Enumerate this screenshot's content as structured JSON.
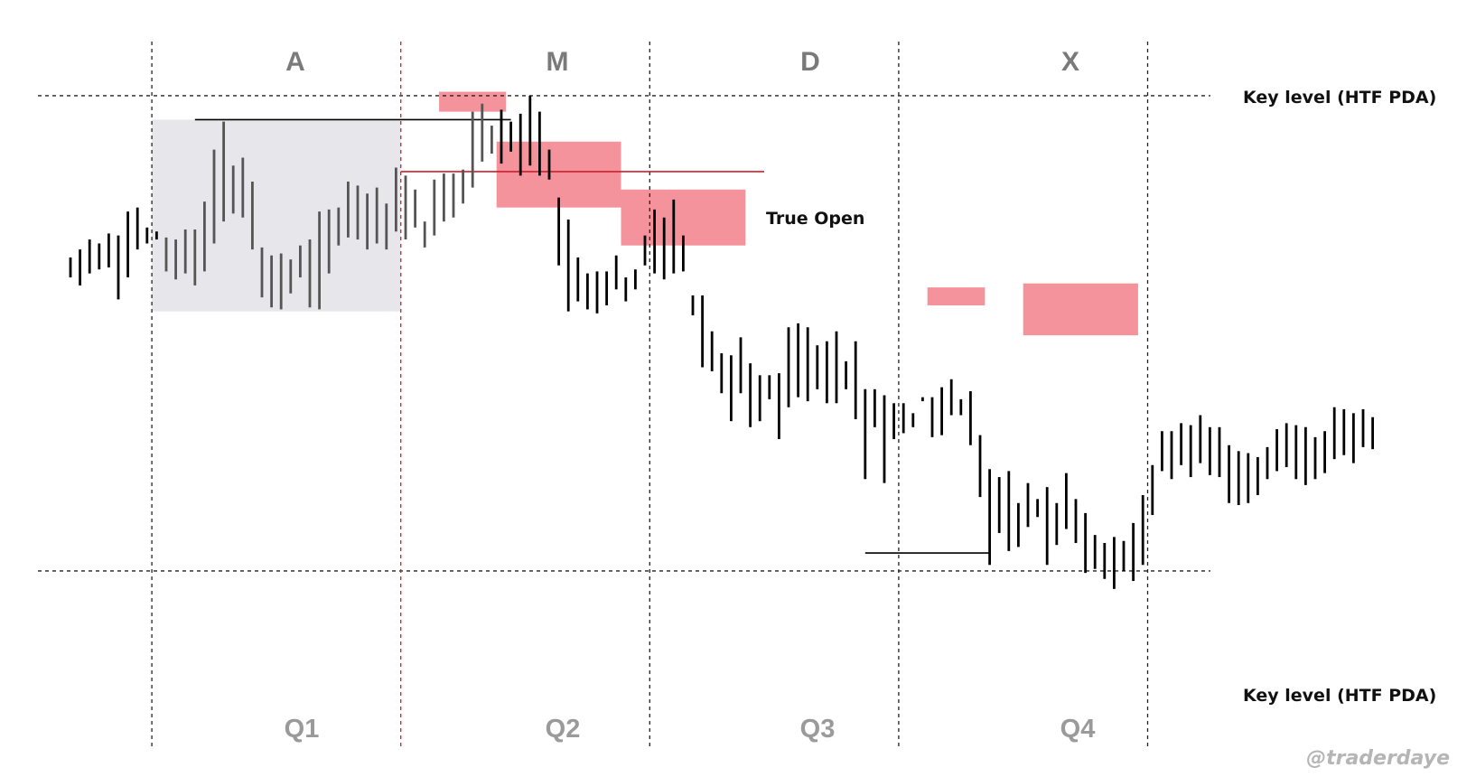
{
  "chart_data": {
    "type": "bar",
    "style": "ohlc-price-bars",
    "grid": false,
    "phases": [
      "A",
      "M",
      "D",
      "X"
    ],
    "quarters": [
      "Q1",
      "Q2",
      "Q3",
      "Q4"
    ],
    "key_level_top": "Key level (HTF PDA)",
    "key_level_bottom": "Key level (HTF PDA)",
    "true_open_label": "True Open",
    "watermark": "@traderdaye",
    "colors": {
      "accumulation_bars": "#555555",
      "price_bars": "#000000",
      "zone_fill": "#f4939c",
      "range_fill": "#e6e6eb",
      "true_open_line": "#d0202c",
      "guide_lines": "#222222",
      "phase_text": "#7a7a7a",
      "quarter_text": "#9a9a9a"
    },
    "bars": [
      [
        0,
        -0.5,
        0.5
      ],
      [
        1,
        -0.9,
        0.9
      ],
      [
        2,
        -0.3,
        1.4
      ],
      [
        3,
        -0.1,
        1.2
      ],
      [
        4,
        0.0,
        1.7
      ],
      [
        5,
        -1.6,
        1.6
      ],
      [
        6,
        -0.5,
        2.8
      ],
      [
        7,
        0.9,
        3.0
      ],
      [
        8,
        1.2,
        2.0
      ],
      [
        9,
        1.4,
        1.8
      ],
      [
        10,
        -0.2,
        1.5
      ],
      [
        11,
        -0.6,
        1.4
      ],
      [
        12,
        -0.3,
        1.9
      ],
      [
        13,
        -0.9,
        1.9
      ],
      [
        14,
        -0.2,
        3.3
      ],
      [
        15,
        1.2,
        5.9
      ],
      [
        16,
        2.3,
        7.3
      ],
      [
        17,
        2.7,
        5.1
      ],
      [
        18,
        2.5,
        5.5
      ],
      [
        19,
        0.9,
        4.3
      ],
      [
        20,
        -1.5,
        1.0
      ],
      [
        21,
        -2.0,
        0.6
      ],
      [
        22,
        -2.1,
        0.7
      ],
      [
        23,
        -1.3,
        0.4
      ],
      [
        24,
        -0.5,
        1.1
      ],
      [
        25,
        -2.0,
        1.4
      ],
      [
        26,
        -2.1,
        2.8
      ],
      [
        27,
        -0.3,
        2.9
      ],
      [
        28,
        1.1,
        3.0
      ],
      [
        29,
        1.5,
        4.3
      ],
      [
        30,
        1.4,
        4.1
      ],
      [
        31,
        0.9,
        3.7
      ],
      [
        32,
        1.2,
        4.0
      ],
      [
        33,
        0.9,
        3.2
      ],
      [
        34,
        1.8,
        5.0
      ],
      [
        35,
        1.4,
        4.6
      ],
      [
        36,
        2.0,
        3.9
      ],
      [
        37,
        1.0,
        2.3
      ],
      [
        38,
        1.6,
        4.4
      ],
      [
        39,
        2.3,
        4.7
      ],
      [
        40,
        2.5,
        4.7
      ],
      [
        41,
        3.2,
        4.9
      ],
      [
        42,
        4.0,
        7.8
      ],
      [
        43,
        5.3,
        8.2
      ],
      [
        44,
        5.7,
        7.1
      ],
      [
        45,
        5.2,
        7.9
      ],
      [
        46,
        5.8,
        7.3
      ],
      [
        47,
        4.6,
        7.7
      ],
      [
        48,
        5.1,
        8.6
      ],
      [
        49,
        4.6,
        7.8
      ],
      [
        50,
        4.4,
        5.9
      ],
      [
        51,
        0.1,
        3.5
      ],
      [
        52,
        -2.2,
        2.4
      ],
      [
        53,
        -1.7,
        0.5
      ],
      [
        54,
        -2.1,
        -0.3
      ],
      [
        55,
        -2.3,
        -0.2
      ],
      [
        56,
        -1.9,
        -0.2
      ],
      [
        57,
        -1.1,
        0.6
      ],
      [
        58,
        -1.7,
        -0.5
      ],
      [
        59,
        -1.1,
        -0.1
      ],
      [
        60,
        0.1,
        1.6
      ],
      [
        61,
        -0.3,
        2.9
      ],
      [
        62,
        -0.6,
        2.5
      ],
      [
        63,
        -0.3,
        3.4
      ],
      [
        64,
        -0.2,
        1.6
      ],
      [
        65,
        -2.4,
        -1.4
      ],
      [
        66,
        -5.0,
        -1.4
      ],
      [
        67,
        -5.2,
        -3.2
      ],
      [
        68,
        -6.3,
        -4.3
      ],
      [
        69,
        -7.7,
        -4.4
      ],
      [
        70,
        -6.3,
        -3.5
      ],
      [
        71,
        -8.0,
        -4.8
      ],
      [
        72,
        -7.7,
        -5.4
      ],
      [
        73,
        -6.6,
        -5.4
      ],
      [
        74,
        -8.6,
        -5.3
      ],
      [
        75,
        -7.0,
        -3.0
      ],
      [
        76,
        -6.5,
        -2.8
      ],
      [
        77,
        -6.7,
        -3.0
      ],
      [
        78,
        -6.1,
        -3.9
      ],
      [
        79,
        -6.8,
        -3.7
      ],
      [
        80,
        -6.8,
        -3.2
      ],
      [
        81,
        -6.1,
        -4.7
      ],
      [
        82,
        -7.6,
        -3.7
      ],
      [
        83,
        -10.6,
        -6.1
      ],
      [
        84,
        -8.0,
        -6.1
      ],
      [
        85,
        -10.8,
        -6.4
      ],
      [
        86,
        -8.6,
        -6.8
      ],
      [
        87,
        -8.3,
        -6.8
      ],
      [
        88,
        -8.0,
        -7.3
      ],
      [
        89,
        -6.7,
        -6.5
      ],
      [
        90,
        -8.5,
        -6.5
      ],
      [
        91,
        -8.4,
        -6.0
      ],
      [
        92,
        -7.4,
        -5.6
      ],
      [
        93,
        -7.4,
        -6.6
      ],
      [
        94,
        -8.9,
        -6.2
      ],
      [
        95,
        -11.5,
        -8.4
      ],
      [
        96,
        -14.9,
        -10.1
      ],
      [
        97,
        -13.3,
        -10.5
      ],
      [
        98,
        -14.2,
        -10.2
      ],
      [
        99,
        -14.0,
        -11.8
      ],
      [
        100,
        -13.0,
        -10.8
      ],
      [
        101,
        -12.5,
        -11.6
      ],
      [
        102,
        -14.9,
        -11.0
      ],
      [
        103,
        -13.9,
        -11.8
      ],
      [
        104,
        -13.1,
        -10.3
      ],
      [
        105,
        -13.8,
        -11.6
      ],
      [
        106,
        -15.3,
        -12.3
      ],
      [
        107,
        -15.1,
        -13.4
      ],
      [
        108,
        -15.6,
        -13.8
      ],
      [
        109,
        -16.1,
        -13.5
      ],
      [
        110,
        -15.2,
        -13.7
      ],
      [
        111,
        -15.7,
        -12.8
      ],
      [
        112,
        -14.9,
        -11.4
      ],
      [
        113,
        -12.4,
        -9.9
      ],
      [
        114,
        -10.2,
        -8.2
      ],
      [
        115,
        -10.6,
        -8.2
      ],
      [
        116,
        -9.9,
        -7.8
      ],
      [
        117,
        -10.5,
        -7.9
      ],
      [
        118,
        -9.8,
        -7.4
      ],
      [
        119,
        -10.4,
        -8.0
      ],
      [
        120,
        -10.5,
        -8.0
      ],
      [
        121,
        -11.8,
        -8.9
      ],
      [
        122,
        -11.9,
        -9.2
      ],
      [
        123,
        -11.8,
        -9.3
      ],
      [
        124,
        -11.4,
        -9.5
      ],
      [
        125,
        -10.6,
        -9.0
      ],
      [
        126,
        -10.2,
        -8.1
      ],
      [
        127,
        -10.0,
        -7.8
      ],
      [
        128,
        -10.6,
        -7.9
      ],
      [
        129,
        -10.9,
        -8.0
      ],
      [
        130,
        -10.6,
        -8.5
      ],
      [
        131,
        -10.3,
        -8.2
      ],
      [
        132,
        -9.6,
        -7.0
      ],
      [
        133,
        -9.4,
        -7.1
      ],
      [
        134,
        -9.8,
        -7.3
      ],
      [
        135,
        -9.0,
        -7.1
      ],
      [
        136,
        -9.1,
        -7.5
      ]
    ],
    "accumulation_bar_count": 35,
    "zones": [
      {
        "from": 38.5,
        "to": 45.5,
        "low": 7.8,
        "high": 8.8
      },
      {
        "from": 44.5,
        "to": 57.5,
        "low": 3.0,
        "high": 6.3
      },
      {
        "from": 57.5,
        "to": 70.5,
        "low": 1.1,
        "high": 3.9
      },
      {
        "from": 89.5,
        "to": 95.5,
        "low": -1.9,
        "high": -1.0
      },
      {
        "from": 99.5,
        "to": 111.5,
        "low": -3.4,
        "high": -0.8
      }
    ],
    "range_box": {
      "from": 8.5,
      "to": 34.5,
      "low": -2.2,
      "high": 7.4
    },
    "range_high": {
      "from": 13,
      "to": 46,
      "value": 7.4
    },
    "range_low": {
      "from": 83,
      "to": 96,
      "value": -14.3
    },
    "key_level_values": {
      "top": 8.6,
      "bottom": -15.2
    },
    "true_open_value": 4.8,
    "quarter_boundaries": [
      8.5,
      34.5,
      60.5,
      86.5,
      112.5
    ]
  }
}
